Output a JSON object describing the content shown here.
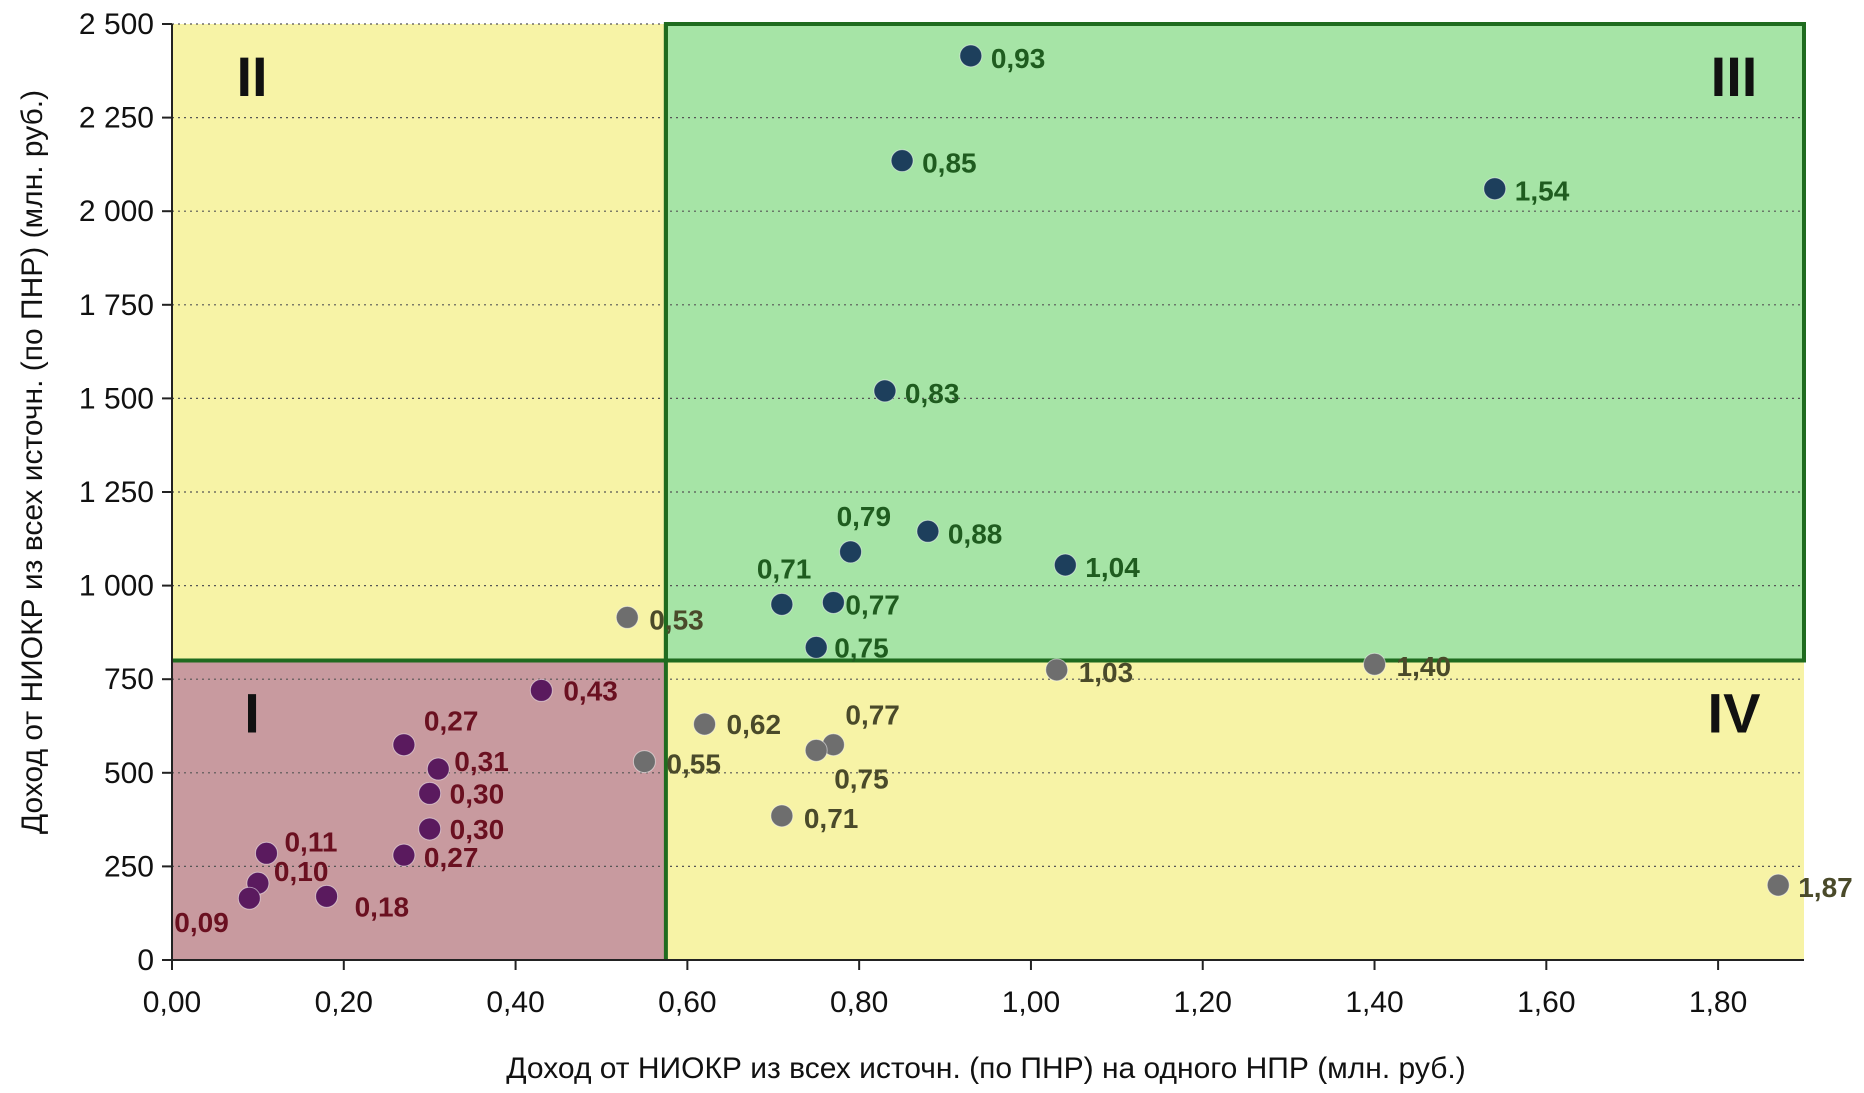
{
  "chart_data": {
    "type": "scatter",
    "title": "",
    "xlabel": "Доход от НИОКР из всех источн. (по ПНР) на одного НПР (млн. руб.)",
    "ylabel": "Доход от НИОКР из всех источн. (по ПНР) (млн. руб.)",
    "xlim": [
      0,
      1.9
    ],
    "ylim": [
      0,
      2500
    ],
    "x_ticks": [
      0,
      0.2,
      0.4,
      0.6,
      0.8,
      1.0,
      1.2,
      1.4,
      1.6,
      1.8
    ],
    "x_tick_labels": [
      "0,00",
      "0,20",
      "0,40",
      "0,60",
      "0,80",
      "1,00",
      "1,20",
      "1,40",
      "1,60",
      "1,80"
    ],
    "y_ticks": [
      0,
      250,
      500,
      750,
      1000,
      1250,
      1500,
      1750,
      2000,
      2250,
      2500
    ],
    "y_tick_labels": [
      "0",
      "250",
      "500",
      "750",
      "1 000",
      "1 250",
      "1 500",
      "1 750",
      "2 000",
      "2 250",
      "2 500"
    ],
    "grid": "horizontal dotted",
    "thresholds": {
      "x": 0.575,
      "y": 800
    },
    "quadrants": [
      {
        "label": "I",
        "x_range": [
          0,
          0.575
        ],
        "y_range": [
          0,
          800
        ],
        "color": "#c89a9f",
        "label_anchor": "top-left"
      },
      {
        "label": "II",
        "x_range": [
          0,
          0.575
        ],
        "y_range": [
          800,
          2500
        ],
        "color": "#f7f3a6",
        "label_anchor": "top-left"
      },
      {
        "label": "III",
        "x_range": [
          0.575,
          1.9
        ],
        "y_range": [
          800,
          2500
        ],
        "color": "#a6e4a6",
        "label_anchor": "top-right"
      },
      {
        "label": "IV",
        "x_range": [
          0.575,
          1.9
        ],
        "y_range": [
          0,
          800
        ],
        "color": "#f7f3a6",
        "label_anchor": "top-right"
      }
    ],
    "divider_color": "#1f6b1f",
    "colors": {
      "group_I": "#5a1a5e",
      "group_I_label": "#6a1020",
      "group_III": "#1d3f5c",
      "group_III_label": "#1f5c1f",
      "group_other": "#6e6e6e",
      "group_other_label": "#4a4a2a"
    },
    "points": [
      {
        "x": 0.93,
        "y": 2415,
        "label": "0,93",
        "group": "III",
        "label_dx": 20,
        "label_dy": 12
      },
      {
        "x": 0.85,
        "y": 2135,
        "label": "0,85",
        "group": "III",
        "label_dx": 20,
        "label_dy": 12
      },
      {
        "x": 1.54,
        "y": 2060,
        "label": "1,54",
        "group": "III",
        "label_dx": 20,
        "label_dy": 12
      },
      {
        "x": 0.83,
        "y": 1520,
        "label": "0,83",
        "group": "III",
        "label_dx": 20,
        "label_dy": 12
      },
      {
        "x": 0.88,
        "y": 1145,
        "label": "0,88",
        "group": "III",
        "label_dx": 20,
        "label_dy": 12
      },
      {
        "x": 0.79,
        "y": 1090,
        "label": "0,79",
        "group": "III",
        "label_dx": -14,
        "label_dy": -26
      },
      {
        "x": 1.04,
        "y": 1055,
        "label": "1,04",
        "group": "III",
        "label_dx": 20,
        "label_dy": 12
      },
      {
        "x": 0.71,
        "y": 950,
        "label": "0,71",
        "group": "III",
        "label_dx": -25,
        "label_dy": -26
      },
      {
        "x": 0.77,
        "y": 955,
        "label": "0,77",
        "group": "III",
        "label_dx": 12,
        "label_dy": 12
      },
      {
        "x": 0.75,
        "y": 835,
        "label": "0,75",
        "group": "III",
        "label_dx": 18,
        "label_dy": 10
      },
      {
        "x": 0.53,
        "y": 915,
        "label": "0,53",
        "group": "other",
        "label_dx": 22,
        "label_dy": 12
      },
      {
        "x": 1.03,
        "y": 775,
        "label": "1,03",
        "group": "other",
        "label_dx": 22,
        "label_dy": 12
      },
      {
        "x": 1.4,
        "y": 790,
        "label": "1,40",
        "group": "other",
        "label_dx": 22,
        "label_dy": 12
      },
      {
        "x": 0.62,
        "y": 630,
        "label": "0,62",
        "group": "other",
        "label_dx": 22,
        "label_dy": 10
      },
      {
        "x": 0.77,
        "y": 575,
        "label": "0,77",
        "group": "other",
        "label_dx": 12,
        "label_dy": -20
      },
      {
        "x": 0.75,
        "y": 560,
        "label": "0,75",
        "group": "other",
        "label_dx": 18,
        "label_dy": 38
      },
      {
        "x": 0.71,
        "y": 385,
        "label": "0,71",
        "group": "other",
        "label_dx": 22,
        "label_dy": 12
      },
      {
        "x": 1.87,
        "y": 200,
        "label": "1,87",
        "group": "other",
        "label_dx": 20,
        "label_dy": 12
      },
      {
        "x": 0.43,
        "y": 720,
        "label": "0,43",
        "group": "I",
        "label_dx": 22,
        "label_dy": 10
      },
      {
        "x": 0.27,
        "y": 575,
        "label": "0,27",
        "group": "I",
        "label_dx": 20,
        "label_dy": -14
      },
      {
        "x": 0.31,
        "y": 510,
        "label": "0,31",
        "group": "I",
        "label_dx": 16,
        "label_dy": 2
      },
      {
        "x": 0.55,
        "y": 530,
        "label": "0,55",
        "group": "other",
        "label_dx": 22,
        "label_dy": 12
      },
      {
        "x": 0.3,
        "y": 445,
        "label": "0,30",
        "group": "I",
        "label_dx": 20,
        "label_dy": 10
      },
      {
        "x": 0.3,
        "y": 350,
        "label": "0,30",
        "group": "I",
        "label_dx": 20,
        "label_dy": 10
      },
      {
        "x": 0.27,
        "y": 280,
        "label": "0,27",
        "group": "I",
        "label_dx": 20,
        "label_dy": 12
      },
      {
        "x": 0.11,
        "y": 285,
        "label": "0,11",
        "group": "I",
        "label_dx": 18,
        "label_dy": -2
      },
      {
        "x": 0.1,
        "y": 205,
        "label": "0,10",
        "group": "I",
        "label_dx": 16,
        "label_dy": -2
      },
      {
        "x": 0.09,
        "y": 165,
        "label": "0,09",
        "group": "I",
        "label_dx": -75,
        "label_dy": 34
      },
      {
        "x": 0.18,
        "y": 170,
        "label": "0,18",
        "group": "I",
        "label_dx": 28,
        "label_dy": 20
      }
    ]
  }
}
